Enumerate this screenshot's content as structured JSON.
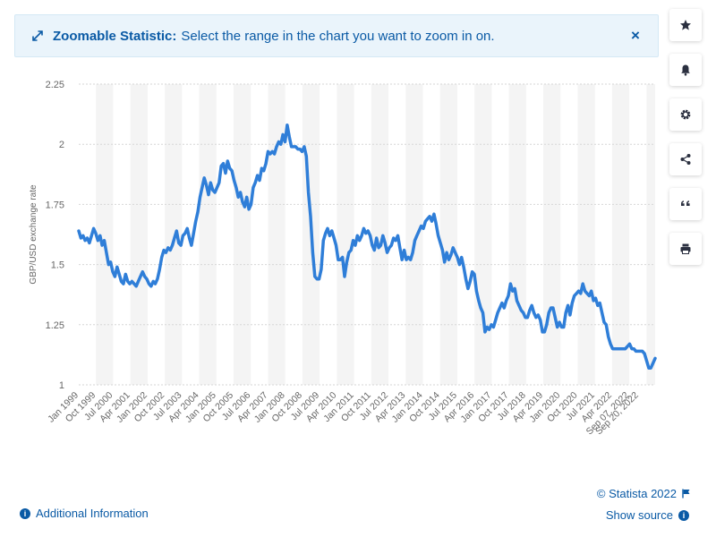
{
  "banner": {
    "title": "Zoomable Statistic:",
    "message": "Select the range in the chart you want to zoom in on.",
    "close_label": "×"
  },
  "sidebar": {
    "buttons": [
      "star-icon",
      "bell-icon",
      "gear-icon",
      "share-icon",
      "quote-icon",
      "print-icon"
    ]
  },
  "footer": {
    "additional_info": "Additional Information",
    "copyright": "© Statista 2022",
    "show_source": "Show source"
  },
  "colors": {
    "line": "#2f7ed8",
    "accent": "#0a5aa5",
    "band": "#f4f4f4"
  },
  "chart_data": {
    "type": "line",
    "title": "",
    "xlabel": "",
    "ylabel": "GBP/USD exchange rate",
    "ylim": [
      1,
      2.25
    ],
    "yticks": [
      1,
      1.25,
      1.5,
      1.75,
      2,
      2.25
    ],
    "ytick_labels": [
      "1",
      "1.25",
      "1.5",
      "1.75",
      "2",
      "2.25"
    ],
    "xtick_labels": [
      "Jan 1999",
      "Oct 1999",
      "Jul 2000",
      "Apr 2001",
      "Jan 2002",
      "Oct 2002",
      "Jul 2003",
      "Apr 2004",
      "Jan 2005",
      "Oct 2005",
      "Jul 2006",
      "Apr 2007",
      "Jan 2008",
      "Oct 2008",
      "Jul 2009",
      "Apr 2010",
      "Jan 2011",
      "Oct 2011",
      "Jul 2012",
      "Apr 2013",
      "Jan 2014",
      "Oct 2014",
      "Jul 2015",
      "Apr 2016",
      "Jan 2017",
      "Oct 2017",
      "Jul 2018",
      "Apr 2019",
      "Jan 2020",
      "Oct 2020",
      "Jul 2021",
      "Apr 2022",
      "Sep 07, 2022",
      "Sep 20, 2022"
    ],
    "grid": true,
    "legend": "none",
    "series": [
      {
        "values": [
          1.64,
          1.61,
          1.62,
          1.6,
          1.61,
          1.59,
          1.62,
          1.65,
          1.63,
          1.6,
          1.62,
          1.58,
          1.6,
          1.55,
          1.5,
          1.51,
          1.47,
          1.45,
          1.49,
          1.46,
          1.43,
          1.42,
          1.46,
          1.43,
          1.42,
          1.43,
          1.42,
          1.41,
          1.43,
          1.45,
          1.47,
          1.45,
          1.44,
          1.42,
          1.41,
          1.43,
          1.42,
          1.44,
          1.48,
          1.53,
          1.56,
          1.55,
          1.57,
          1.56,
          1.58,
          1.61,
          1.64,
          1.59,
          1.58,
          1.62,
          1.63,
          1.65,
          1.61,
          1.58,
          1.63,
          1.68,
          1.72,
          1.78,
          1.82,
          1.86,
          1.83,
          1.79,
          1.84,
          1.81,
          1.8,
          1.82,
          1.84,
          1.91,
          1.92,
          1.88,
          1.93,
          1.9,
          1.89,
          1.85,
          1.82,
          1.78,
          1.8,
          1.76,
          1.74,
          1.78,
          1.73,
          1.75,
          1.82,
          1.84,
          1.87,
          1.85,
          1.9,
          1.89,
          1.92,
          1.97,
          1.96,
          1.97,
          1.96,
          1.99,
          2.01,
          2.0,
          2.04,
          2.01,
          2.08,
          2.03,
          1.99,
          1.99,
          1.99,
          1.98,
          1.98,
          1.97,
          1.99,
          1.95,
          1.8,
          1.7,
          1.55,
          1.45,
          1.44,
          1.44,
          1.48,
          1.6,
          1.63,
          1.65,
          1.62,
          1.64,
          1.61,
          1.58,
          1.52,
          1.52,
          1.53,
          1.45,
          1.51,
          1.55,
          1.56,
          1.6,
          1.58,
          1.62,
          1.6,
          1.62,
          1.65,
          1.63,
          1.64,
          1.62,
          1.58,
          1.56,
          1.61,
          1.57,
          1.58,
          1.62,
          1.59,
          1.55,
          1.57,
          1.58,
          1.61,
          1.6,
          1.62,
          1.57,
          1.52,
          1.56,
          1.52,
          1.53,
          1.52,
          1.55,
          1.6,
          1.62,
          1.64,
          1.66,
          1.65,
          1.68,
          1.69,
          1.7,
          1.68,
          1.71,
          1.67,
          1.62,
          1.59,
          1.56,
          1.51,
          1.55,
          1.52,
          1.54,
          1.57,
          1.55,
          1.53,
          1.5,
          1.53,
          1.49,
          1.44,
          1.4,
          1.43,
          1.47,
          1.46,
          1.39,
          1.35,
          1.32,
          1.3,
          1.22,
          1.24,
          1.23,
          1.25,
          1.24,
          1.27,
          1.3,
          1.32,
          1.34,
          1.32,
          1.35,
          1.37,
          1.42,
          1.39,
          1.4,
          1.35,
          1.33,
          1.31,
          1.3,
          1.28,
          1.28,
          1.31,
          1.33,
          1.3,
          1.28,
          1.29,
          1.27,
          1.22,
          1.22,
          1.25,
          1.3,
          1.32,
          1.32,
          1.28,
          1.24,
          1.26,
          1.24,
          1.24,
          1.3,
          1.33,
          1.29,
          1.34,
          1.37,
          1.38,
          1.39,
          1.38,
          1.42,
          1.39,
          1.38,
          1.37,
          1.39,
          1.35,
          1.36,
          1.33,
          1.34,
          1.3,
          1.26,
          1.25,
          1.2,
          1.17,
          1.15,
          1.15,
          1.15,
          1.15,
          1.15,
          1.15,
          1.15,
          1.16,
          1.17,
          1.15,
          1.15,
          1.14,
          1.14,
          1.14,
          1.14,
          1.13,
          1.1,
          1.07,
          1.07,
          1.09,
          1.11
        ]
      }
    ]
  }
}
